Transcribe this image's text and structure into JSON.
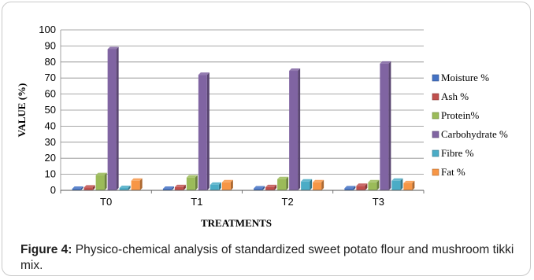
{
  "chart_data": {
    "type": "bar",
    "title": "",
    "xlabel": "TREATMENTS",
    "ylabel": "VALUE  (%)",
    "ylim": [
      0,
      100
    ],
    "yticks": [
      "0",
      "10",
      "20",
      "30",
      "40",
      "50",
      "60",
      "70",
      "80",
      "90",
      "100"
    ],
    "categories": [
      "T0",
      "T1",
      "T2",
      "T3"
    ],
    "grid": true,
    "legend": "right",
    "series": [
      {
        "name": "Moisture %",
        "color": "#4472c4",
        "values": [
          1,
          1,
          1.2,
          1.3
        ]
      },
      {
        "name": "Ash %",
        "color": "#c0504d",
        "values": [
          1.8,
          2,
          2,
          2.8
        ]
      },
      {
        "name": "Protein%",
        "color": "#9bbb59",
        "values": [
          9.5,
          8,
          7,
          5
        ]
      },
      {
        "name": "Carbohydrate %",
        "color": "#8064a2",
        "values": [
          88,
          72,
          74.5,
          79
        ]
      },
      {
        "name": "Fibre %",
        "color": "#4bacc6",
        "values": [
          1.5,
          3.5,
          5.5,
          6
        ]
      },
      {
        "name": "Fat %",
        "color": "#f79646",
        "values": [
          6,
          5,
          5,
          4.5
        ]
      }
    ]
  },
  "caption": {
    "label": "Figure 4:",
    "text": " Physico-chemical analysis of standardized sweet potato flour and mushroom tikki mix."
  }
}
